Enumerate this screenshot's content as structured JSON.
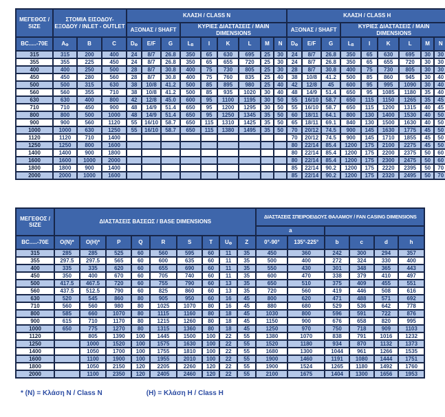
{
  "colors": {
    "header_bg": "#3e66ab",
    "border": "#172649",
    "row_alt": "#b5c8e8",
    "row_white": "#ffffff",
    "cell_text": "#1e3a70",
    "size_text": "#10203f",
    "footnote_text": "#2b4ba2"
  },
  "table1": {
    "size_header": "ΜΕΓΕΘΟΣ / SIZE",
    "inlet_outlet_header": "ΣΤΟΜΙΑ ΕΙΣΟΔΟΥ-ΕΞΟΔΟΥ / INLET - OUTLET",
    "class_n_header": "ΚΛΑΣΗ / CLASS N",
    "class_h_header": "ΚΛΑΣΗ / CLASS H",
    "shaft_header": "ΑΞΟΝΑΣ / SHAFT",
    "main_dimensions_header": "ΚΥΡΙΕΣ ΔΙΑΣΤΑΣΕΙΣ / MAIN DIMENSIONS",
    "model_header": "BC.....-70E",
    "columns": [
      {
        "label": "A",
        "sub": "Φ"
      },
      {
        "label": "B"
      },
      {
        "label": "C"
      },
      {
        "label": "D",
        "sub": "Φ"
      },
      {
        "label": "E/F"
      },
      {
        "label": "G"
      },
      {
        "label": "L",
        "sub": "B"
      },
      {
        "label": "I"
      },
      {
        "label": "K"
      },
      {
        "label": "L"
      },
      {
        "label": "M"
      },
      {
        "label": "N"
      },
      {
        "label": "D",
        "sub": "Φ"
      },
      {
        "label": "E/F"
      },
      {
        "label": "G"
      },
      {
        "label": "L",
        "sub": "B"
      },
      {
        "label": "I"
      },
      {
        "label": "K"
      },
      {
        "label": "L"
      },
      {
        "label": "M"
      },
      {
        "label": "N"
      }
    ],
    "rows": [
      [
        "315",
        "315",
        "200",
        "400",
        "24",
        "8/7",
        "26.8",
        "350",
        "65",
        "630",
        "695",
        "25",
        "30",
        "24",
        "8/7",
        "26.8",
        "350",
        "65",
        "630",
        "695",
        "30",
        "30"
      ],
      [
        "355",
        "355",
        "225",
        "450",
        "24",
        "8/7",
        "26.8",
        "350",
        "65",
        "655",
        "720",
        "25",
        "30",
        "24",
        "8/7",
        "26.8",
        "350",
        "65",
        "655",
        "720",
        "30",
        "30"
      ],
      [
        "400",
        "400",
        "250",
        "500",
        "28",
        "8/7",
        "30.8",
        "400",
        "75",
        "730",
        "805",
        "25",
        "30",
        "28",
        "8/7",
        "30.8",
        "400",
        "75",
        "730",
        "805",
        "30",
        "30"
      ],
      [
        "450",
        "450",
        "280",
        "560",
        "28",
        "8/7",
        "30.8",
        "400",
        "75",
        "760",
        "835",
        "25",
        "40",
        "38",
        "10/8",
        "41.2",
        "500",
        "85",
        "860",
        "945",
        "30",
        "40"
      ],
      [
        "500",
        "500",
        "315",
        "630",
        "38",
        "10/8",
        "41.2",
        "500",
        "85",
        "895",
        "980",
        "25",
        "40",
        "42",
        "12/8",
        "45",
        "600",
        "95",
        "995",
        "1090",
        "30",
        "40"
      ],
      [
        "560",
        "560",
        "355",
        "710",
        "38",
        "10/8",
        "41.2",
        "500",
        "85",
        "935",
        "1020",
        "30",
        "40",
        "48",
        "14/9",
        "51.4",
        "650",
        "95",
        "1085",
        "1180",
        "35",
        "40"
      ],
      [
        "630",
        "630",
        "400",
        "800",
        "42",
        "12/8",
        "45.0",
        "600",
        "95",
        "1100",
        "1195",
        "30",
        "50",
        "55",
        "16/10",
        "58.7",
        "650",
        "115",
        "1150",
        "1265",
        "35",
        "45"
      ],
      [
        "710",
        "710",
        "450",
        "900",
        "48",
        "14/9",
        "51.4",
        "650",
        "95",
        "1200",
        "1295",
        "30",
        "50",
        "55",
        "16/10",
        "58.7",
        "650",
        "115",
        "1200",
        "1315",
        "40",
        "45"
      ],
      [
        "800",
        "800",
        "500",
        "1000",
        "48",
        "14/9",
        "51.4",
        "650",
        "95",
        "1250",
        "1345",
        "35",
        "50",
        "60",
        "18/11",
        "64.1",
        "800",
        "130",
        "1400",
        "1530",
        "40",
        "50"
      ],
      [
        "900",
        "900",
        "560",
        "1120",
        "55",
        "16/10",
        "58.7",
        "650",
        "115",
        "1310",
        "1425",
        "35",
        "50",
        "65",
        "18/11",
        "69.1",
        "840",
        "130",
        "1500",
        "1630",
        "40",
        "50"
      ],
      [
        "1000",
        "1000",
        "630",
        "1250",
        "55",
        "16/10",
        "58.7",
        "650",
        "115",
        "1380",
        "1495",
        "35",
        "50",
        "70",
        "20/12",
        "74.5",
        "900",
        "145",
        "1630",
        "1775",
        "45",
        "50"
      ],
      [
        "1120",
        "1120",
        "710",
        "1400",
        "",
        "",
        "",
        "",
        "",
        "",
        "",
        "",
        "",
        "70",
        "20/12",
        "74.5",
        "900",
        "145",
        "1710",
        "1855",
        "45",
        "50"
      ],
      [
        "1250",
        "1250",
        "800",
        "1600",
        "",
        "",
        "",
        "",
        "",
        "",
        "",
        "",
        "",
        "80",
        "22/14",
        "85.4",
        "1200",
        "175",
        "2100",
        "2275",
        "45",
        "50"
      ],
      [
        "1400",
        "1400",
        "900",
        "1800",
        "",
        "",
        "",
        "",
        "",
        "",
        "",
        "",
        "",
        "80",
        "22/14",
        "85.4",
        "1200",
        "175",
        "2200",
        "2375",
        "50",
        "60"
      ],
      [
        "1600",
        "1600",
        "1000",
        "2000",
        "",
        "",
        "",
        "",
        "",
        "",
        "",
        "",
        "",
        "80",
        "22/14",
        "85.4",
        "1200",
        "175",
        "2300",
        "2475",
        "50",
        "60"
      ],
      [
        "1800",
        "1800",
        "900",
        "1400",
        "",
        "",
        "",
        "",
        "",
        "",
        "",
        "",
        "",
        "85",
        "22/14",
        "90.2",
        "1200",
        "175",
        "2220",
        "2395",
        "50",
        "70"
      ],
      [
        "2000",
        "2000",
        "1000",
        "1600",
        "",
        "",
        "",
        "",
        "",
        "",
        "",
        "",
        "",
        "85",
        "22/14",
        "90.2",
        "1200",
        "175",
        "2320",
        "2495",
        "50",
        "70"
      ]
    ]
  },
  "table2": {
    "size_header": "ΜΕΓΕΘΟΣ / SIZE",
    "base_header": "ΔΙΑΣΤΑΣΕΙΣ ΒΑΣΕΩΣ / BASE DIMENSIONS",
    "casing_header": "ΔΙΑΣΤΑΣΕΙΣ ΣΠΕΙΡΟΕΙΔΟΥΣ ΘΑΛΑΜΟΥ / FAN CASING DIMENSIONS",
    "a_header": "a",
    "model_header": "BC.....-70E",
    "columns": [
      {
        "label": "O(N)*"
      },
      {
        "label": "O(H)*"
      },
      {
        "label": "P"
      },
      {
        "label": "Q"
      },
      {
        "label": "R"
      },
      {
        "label": "S"
      },
      {
        "label": "T"
      },
      {
        "label": "U",
        "sub": "Φ"
      },
      {
        "label": "Z"
      },
      {
        "label": "0°-90°"
      },
      {
        "label": "135°-225°"
      },
      {
        "label": "b"
      },
      {
        "label": "c"
      },
      {
        "label": "d"
      },
      {
        "label": "h"
      }
    ],
    "rows": [
      [
        "315",
        "285",
        "285",
        "525",
        "60",
        "560",
        "595",
        "60",
        "11",
        "35",
        "450",
        "360",
        "242",
        "300",
        "294",
        "357"
      ],
      [
        "355",
        "297.5",
        "297.5",
        "565",
        "60",
        "600",
        "635",
        "60",
        "11",
        "35",
        "500",
        "400",
        "272",
        "324",
        "330",
        "400"
      ],
      [
        "400",
        "335",
        "335",
        "620",
        "60",
        "655",
        "690",
        "60",
        "11",
        "35",
        "550",
        "430",
        "301",
        "348",
        "365",
        "443"
      ],
      [
        "450",
        "350",
        "400",
        "670",
        "60",
        "705",
        "740",
        "60",
        "11",
        "35",
        "600",
        "470",
        "338",
        "379",
        "410",
        "497"
      ],
      [
        "500",
        "417.5",
        "467.5",
        "720",
        "60",
        "755",
        "790",
        "60",
        "13",
        "35",
        "650",
        "510",
        "375",
        "409",
        "455",
        "551"
      ],
      [
        "560",
        "437.5",
        "512.5",
        "790",
        "60",
        "825",
        "860",
        "60",
        "13",
        "35",
        "720",
        "560",
        "419",
        "446",
        "508",
        "616"
      ],
      [
        "630",
        "520",
        "545",
        "860",
        "80",
        "905",
        "950",
        "60",
        "16",
        "45",
        "800",
        "620",
        "471",
        "488",
        "571",
        "692"
      ],
      [
        "710",
        "560",
        "560",
        "980",
        "80",
        "1025",
        "1070",
        "80",
        "16",
        "45",
        "880",
        "680",
        "529",
        "536",
        "642",
        "778"
      ],
      [
        "800",
        "585",
        "660",
        "1070",
        "80",
        "1115",
        "1160",
        "80",
        "18",
        "45",
        "1030",
        "800",
        "596",
        "591",
        "722",
        "876"
      ],
      [
        "900",
        "615",
        "710",
        "1170",
        "80",
        "1215",
        "1260",
        "80",
        "18",
        "45",
        "1150",
        "900",
        "676",
        "658",
        "820",
        "995"
      ],
      [
        "1000",
        "650",
        "775",
        "1270",
        "80",
        "1315",
        "1360",
        "80",
        "18",
        "45",
        "1250",
        "970",
        "750",
        "718",
        "909",
        "1103"
      ],
      [
        "1120",
        "",
        "805",
        "1390",
        "100",
        "1445",
        "1500",
        "100",
        "22",
        "55",
        "1380",
        "1070",
        "838",
        "791",
        "1016",
        "1232"
      ],
      [
        "1250",
        "",
        "1000",
        "1520",
        "100",
        "1575",
        "1630",
        "100",
        "22",
        "55",
        "1520",
        "1180",
        "934",
        "870",
        "1132",
        "1373"
      ],
      [
        "1400",
        "",
        "1050",
        "1700",
        "100",
        "1755",
        "1810",
        "100",
        "22",
        "55",
        "1680",
        "1300",
        "1044",
        "961",
        "1266",
        "1535"
      ],
      [
        "1600",
        "",
        "1100",
        "1900",
        "100",
        "1955",
        "2010",
        "100",
        "22",
        "55",
        "1900",
        "1460",
        "1191",
        "1080",
        "1444",
        "1751"
      ],
      [
        "1800",
        "",
        "1050",
        "2150",
        "120",
        "2205",
        "2260",
        "120",
        "22",
        "55",
        "1900",
        "1524",
        "1265",
        "1180",
        "1492",
        "1760"
      ],
      [
        "2000",
        "",
        "1100",
        "2350",
        "120",
        "2405",
        "2460",
        "120",
        "22",
        "55",
        "2100",
        "1675",
        "1404",
        "1300",
        "1656",
        "1953"
      ]
    ]
  },
  "footnote": {
    "n_label": "* (N) = Κλάση N / Class N",
    "h_label": "(H) = Κλάση H / Class H"
  }
}
